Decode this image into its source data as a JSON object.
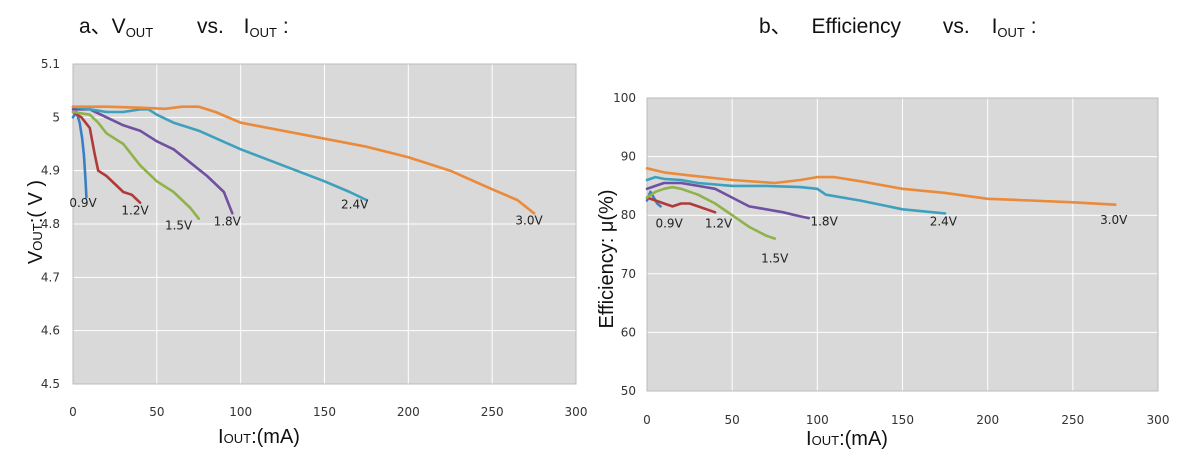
{
  "headings": {
    "a": {
      "prefix": "a、V",
      "sub1": "OUT",
      "mid": "vs.",
      "i": "I",
      "sub2": "OUT",
      "colon": ":"
    },
    "b": {
      "prefix": "b、",
      "name": "Efficiency",
      "mid": "vs.",
      "i": "I",
      "sub2": "OUT",
      "colon": ":"
    }
  },
  "colors": {
    "0.9V": "#3a7fc4",
    "1.2V": "#b03a3a",
    "1.5V": "#8fb24a",
    "1.8V": "#7050a0",
    "2.4V": "#3ea0bc",
    "3.0V": "#ea8a3a",
    "plot_bg": "#d9d9d9",
    "grid": "#ffffff"
  },
  "chart_data": [
    {
      "type": "line",
      "id": "vout",
      "xlabel": {
        "main": "I",
        "sub": "OUT",
        "rest": ":(mA)"
      },
      "ylabel": {
        "main": "V",
        "sub": "OUT",
        "rest": ":( V )"
      },
      "xlim": [
        0,
        300
      ],
      "ylim": [
        4.5,
        5.1
      ],
      "xticks": [
        0,
        50,
        100,
        150,
        200,
        250,
        300
      ],
      "yticks": [
        4.5,
        4.6,
        4.7,
        4.8,
        4.9,
        5,
        5.1
      ],
      "grid": true,
      "series": [
        {
          "name": "0.9V",
          "x": [
            0,
            2,
            4,
            5.5,
            6.5,
            7.5,
            8
          ],
          "y": [
            5.0,
            5.01,
            4.99,
            4.96,
            4.93,
            4.88,
            4.85
          ]
        },
        {
          "name": "1.2V",
          "x": [
            0,
            5,
            10,
            13,
            15,
            20,
            25,
            30,
            35,
            40
          ],
          "y": [
            5.01,
            5.0,
            4.98,
            4.93,
            4.9,
            4.89,
            4.875,
            4.86,
            4.855,
            4.84
          ]
        },
        {
          "name": "1.5V",
          "x": [
            0,
            10,
            15,
            20,
            25,
            30,
            40,
            50,
            60,
            65,
            70,
            75
          ],
          "y": [
            5.01,
            5.005,
            4.99,
            4.97,
            4.96,
            4.95,
            4.91,
            4.88,
            4.86,
            4.845,
            4.83,
            4.81
          ]
        },
        {
          "name": "1.8V",
          "x": [
            0,
            10,
            20,
            30,
            40,
            50,
            60,
            70,
            80,
            90,
            95
          ],
          "y": [
            5.015,
            5.015,
            5.0,
            4.985,
            4.975,
            4.955,
            4.94,
            4.915,
            4.89,
            4.86,
            4.82
          ]
        },
        {
          "name": "2.4V",
          "x": [
            0,
            10,
            20,
            30,
            40,
            45,
            50,
            60,
            75,
            100,
            125,
            150,
            165,
            175
          ],
          "y": [
            5.02,
            5.015,
            5.01,
            5.01,
            5.015,
            5.015,
            5.005,
            4.99,
            4.975,
            4.94,
            4.91,
            4.88,
            4.86,
            4.845
          ]
        },
        {
          "name": "3.0V",
          "x": [
            0,
            20,
            40,
            55,
            65,
            75,
            85,
            100,
            125,
            150,
            175,
            200,
            225,
            250,
            265,
            275
          ],
          "y": [
            5.02,
            5.02,
            5.018,
            5.016,
            5.02,
            5.02,
            5.01,
            4.99,
            4.975,
            4.96,
            4.945,
            4.925,
            4.9,
            4.865,
            4.845,
            4.82
          ]
        }
      ],
      "labels": [
        {
          "text": "0.9V",
          "series": "0.9V",
          "x": 6,
          "y": 4.832
        },
        {
          "text": "1.2V",
          "series": "1.2V",
          "x": 37,
          "y": 4.818
        },
        {
          "text": "1.5V",
          "series": "1.5V",
          "x": 63,
          "y": 4.79
        },
        {
          "text": "1.8V",
          "series": "1.8V",
          "x": 92,
          "y": 4.797
        },
        {
          "text": "2.4V",
          "series": "2.4V",
          "x": 168,
          "y": 4.829
        },
        {
          "text": "3.0V",
          "series": "3.0V",
          "x": 272,
          "y": 4.799
        }
      ]
    },
    {
      "type": "line",
      "id": "efficiency",
      "xlabel": {
        "main": "I",
        "sub": "OUT",
        "rest": ":(mA)"
      },
      "ylabel": {
        "main": "Efficiency: μ(%)",
        "sub": "",
        "rest": ""
      },
      "xlim": [
        0,
        300
      ],
      "ylim": [
        50,
        100
      ],
      "xticks": [
        0,
        50,
        100,
        150,
        200,
        250,
        300
      ],
      "yticks": [
        50,
        60,
        70,
        80,
        90,
        100
      ],
      "grid": true,
      "series": [
        {
          "name": "0.9V",
          "x": [
            0,
            2,
            4,
            6,
            8
          ],
          "y": [
            82.5,
            84,
            83,
            82,
            81.5
          ]
        },
        {
          "name": "1.2V",
          "x": [
            0,
            5,
            10,
            15,
            20,
            25,
            30,
            35,
            40
          ],
          "y": [
            83,
            82.5,
            82,
            81.5,
            82,
            82,
            81.5,
            81,
            80.5
          ]
        },
        {
          "name": "1.5V",
          "x": [
            0,
            5,
            10,
            15,
            20,
            30,
            40,
            50,
            60,
            70,
            75
          ],
          "y": [
            83,
            84,
            84.5,
            84.8,
            84.5,
            83.5,
            82,
            80,
            78,
            76.5,
            76
          ]
        },
        {
          "name": "1.8V",
          "x": [
            0,
            5,
            10,
            20,
            30,
            40,
            50,
            60,
            70,
            80,
            90,
            95
          ],
          "y": [
            84.5,
            85,
            85.5,
            85.5,
            85,
            84.5,
            83,
            81.5,
            81,
            80.5,
            79.8,
            79.5
          ]
        },
        {
          "name": "2.4V",
          "x": [
            0,
            5,
            10,
            20,
            30,
            50,
            70,
            90,
            100,
            105,
            125,
            150,
            175
          ],
          "y": [
            86,
            86.5,
            86.2,
            86,
            85.5,
            85,
            85,
            84.8,
            84.5,
            83.5,
            82.5,
            81,
            80.3
          ]
        },
        {
          "name": "3.0V",
          "x": [
            0,
            10,
            25,
            50,
            75,
            90,
            100,
            110,
            125,
            150,
            175,
            200,
            225,
            250,
            275
          ],
          "y": [
            88,
            87.3,
            86.8,
            86,
            85.5,
            86,
            86.5,
            86.5,
            85.8,
            84.5,
            83.8,
            82.8,
            82.5,
            82.2,
            81.8
          ]
        }
      ],
      "labels": [
        {
          "text": "0.9V",
          "series": "0.9V",
          "x": 13,
          "y": 77.9
        },
        {
          "text": "1.2V",
          "series": "1.2V",
          "x": 42,
          "y": 77.9
        },
        {
          "text": "1.5V",
          "series": "1.5V",
          "x": 75,
          "y": 71.9
        },
        {
          "text": "1.8V",
          "series": "1.8V",
          "x": 104,
          "y": 78.2
        },
        {
          "text": "2.4V",
          "series": "2.4V",
          "x": 174,
          "y": 78.2
        },
        {
          "text": "3.0V",
          "series": "3.0V",
          "x": 274,
          "y": 78.5
        }
      ]
    }
  ]
}
